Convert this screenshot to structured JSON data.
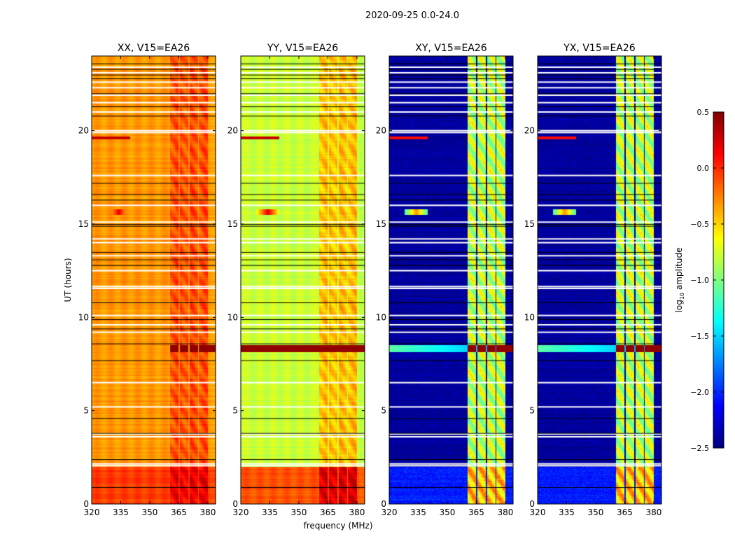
{
  "chart_data": {
    "type": "heatmap",
    "suptitle": "2020-09-25 0.0-24.0",
    "xlabel": "frequency (MHz)",
    "ylabel": "UT (hours)",
    "xlim": [
      320,
      384
    ],
    "ylim": [
      0,
      24
    ],
    "xticks": [
      "320",
      "335",
      "350",
      "365",
      "380"
    ],
    "yticks": [
      "0",
      "5",
      "10",
      "15",
      "20"
    ],
    "colorbar": {
      "label_main": "log",
      "label_sub": "10",
      "label_rest": " amplitude",
      "range": [
        -2.5,
        0.5
      ],
      "ticks": [
        "0.5",
        "0.0",
        "−0.5",
        "−1.0",
        "−1.5",
        "−2.0",
        "−2.5"
      ],
      "tick_values": [
        0.5,
        0.0,
        -0.5,
        -1.0,
        -1.5,
        -2.0,
        -2.5
      ],
      "colormap": "jet"
    },
    "subbands_mhz": [
      [
        360.5,
        364.8
      ],
      [
        365.5,
        369.8
      ],
      [
        370.5,
        374.9
      ],
      [
        375.5,
        379.9
      ]
    ],
    "flagged_white_hours": [
      2.05,
      2.15,
      3.6,
      3.75,
      5.2,
      6.5,
      9.2,
      9.6,
      10.1,
      11.55,
      11.65,
      12.5,
      13.3,
      14.0,
      14.2,
      15.1,
      16.0,
      17.6,
      19.9,
      20.0,
      21.0,
      21.5,
      21.9,
      22.3,
      22.6,
      23.1,
      23.4
    ],
    "flagged_black_hours": [
      0.9,
      2.4,
      3.8,
      4.6,
      7.7,
      8.6,
      9.4,
      9.9,
      10.8,
      12.8,
      13.1,
      13.5,
      14.9,
      15.0,
      16.3,
      16.6,
      17.2,
      20.8,
      21.3,
      22.0,
      22.8,
      23.0,
      23.3,
      23.6
    ],
    "panels": [
      {
        "title": "XX, V15=EA26",
        "base": -0.32,
        "early": -0.05,
        "event": 0.45,
        "event_full_width": false,
        "band_boost": 0.22
      },
      {
        "title": "YY, V15=EA26",
        "base": -0.78,
        "early": -0.12,
        "event": 0.45,
        "event_full_width": true,
        "band_boost": 0.35
      },
      {
        "title": "XY, V15=EA26",
        "base": -2.42,
        "early": -2.05,
        "event": -1.1,
        "event_full_width": true,
        "band_boost": 1.6
      },
      {
        "title": "YX, V15=EA26",
        "base": -2.42,
        "early": -2.05,
        "event": -1.1,
        "event_full_width": true,
        "band_boost": 1.6
      }
    ]
  }
}
